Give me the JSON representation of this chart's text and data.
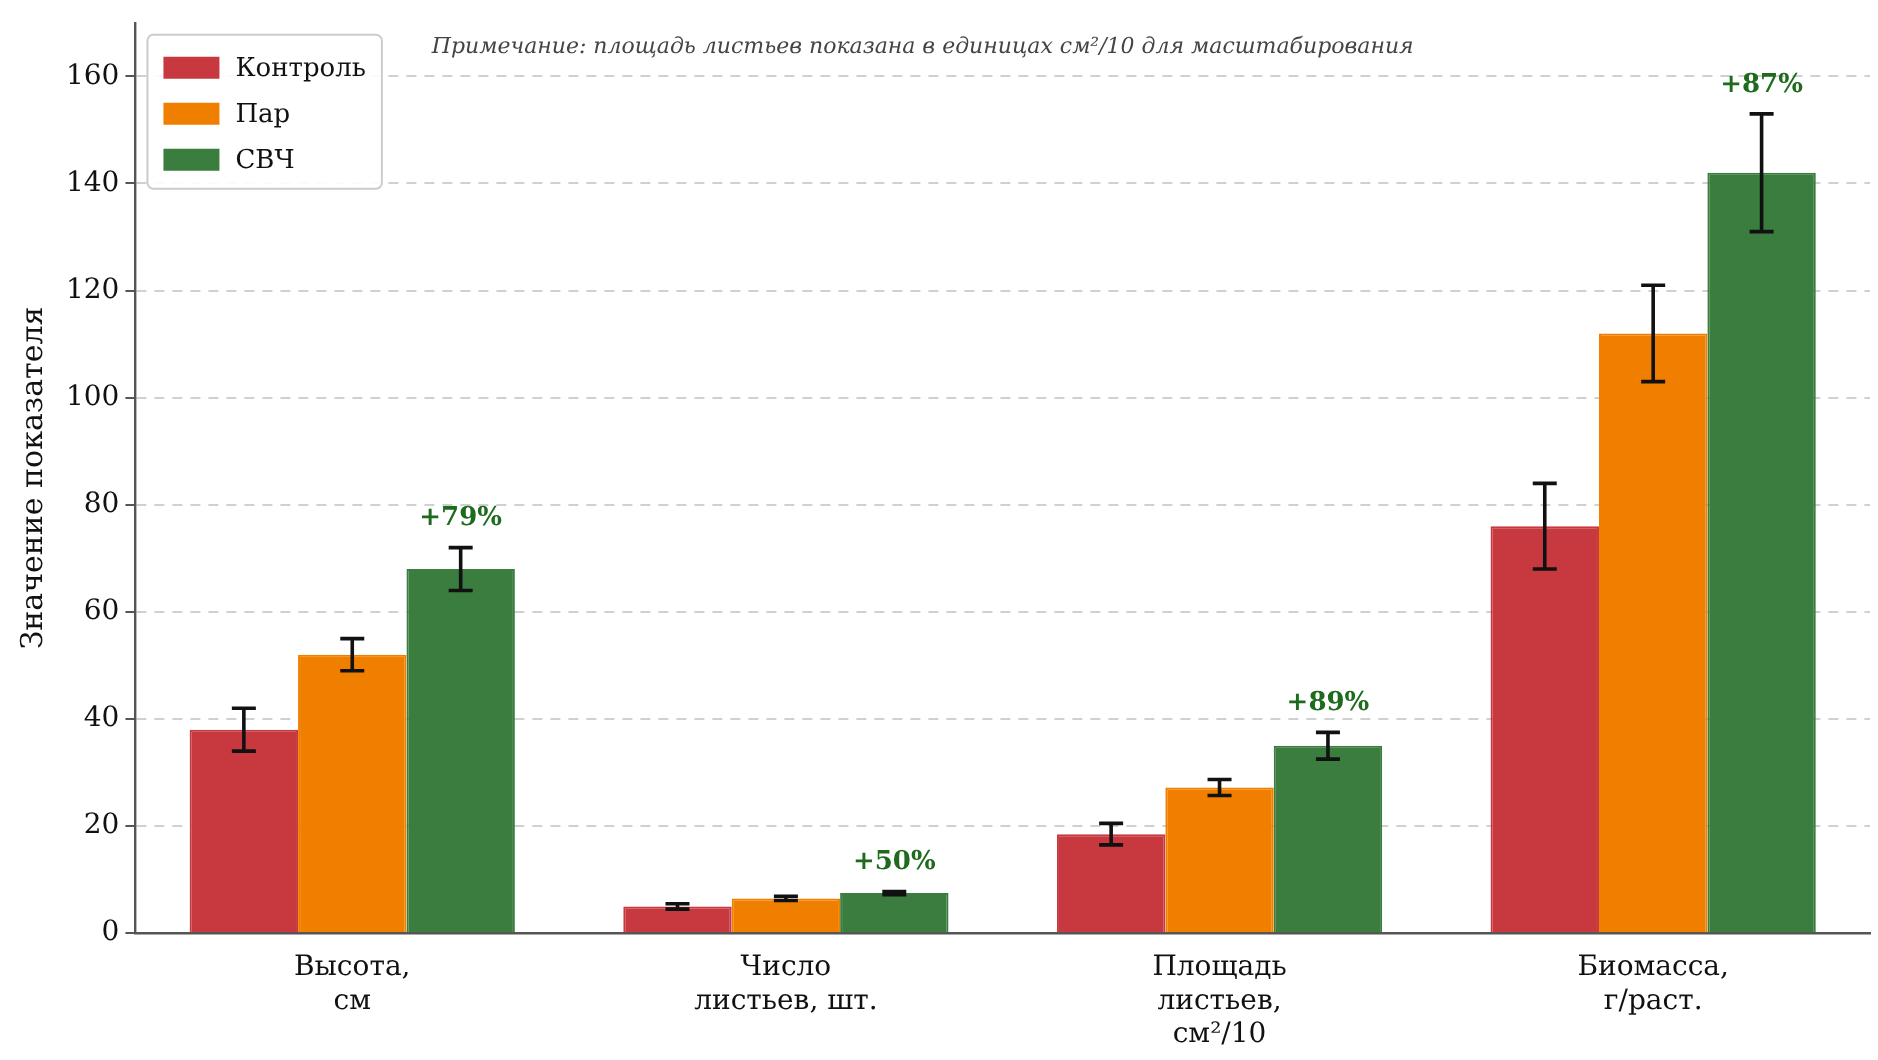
{
  "chart_data": {
    "type": "bar",
    "ylabel": "Значение показателя",
    "categories": [
      "Высота,\nсм",
      "Число\nлистьев, шт.",
      "Площадь\nлистьев,\nсм²/10",
      "Биомасса,\nг/раст."
    ],
    "series": [
      {
        "name": "Контроль",
        "color": "#c8393f",
        "values": [
          38,
          5,
          18.5,
          76
        ],
        "errors": [
          4,
          0.5,
          2,
          8
        ]
      },
      {
        "name": "Пар",
        "color": "#f07f00",
        "values": [
          52,
          6.5,
          27.2,
          112
        ],
        "errors": [
          3,
          0.4,
          1.5,
          9
        ]
      },
      {
        "name": "СВЧ",
        "color": "#3a7d3e",
        "values": [
          68,
          7.5,
          35,
          142
        ],
        "errors": [
          4,
          0.3,
          2.5,
          11
        ]
      }
    ],
    "ylim": [
      0,
      170
    ],
    "yticks": [
      0,
      20,
      40,
      60,
      80,
      100,
      120,
      140,
      160
    ],
    "grid": "y",
    "legend": "top left",
    "annotations": [
      "Примечание: площадь листьев показана в единицах см²/10 для масштабирования",
      "+79%",
      "+50%",
      "+89%",
      "+87%"
    ]
  }
}
